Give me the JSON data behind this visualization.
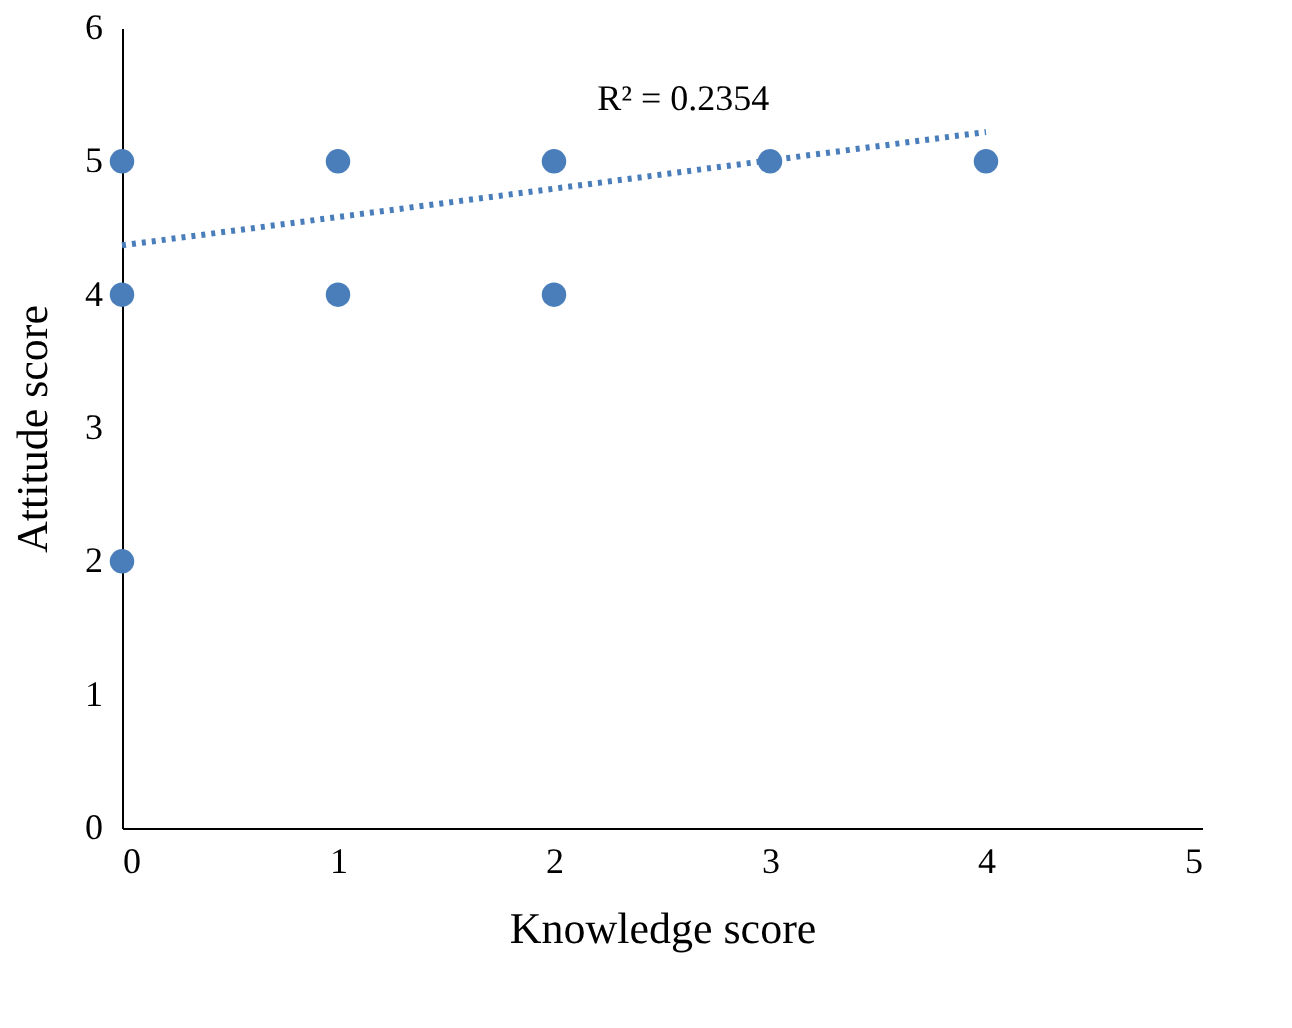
{
  "chart_data": {
    "type": "scatter",
    "xlabel": "Knowledge score",
    "ylabel": "Attitude score",
    "series": [
      {
        "color": "#4a7ebb",
        "marker": "circle",
        "x": [
          0,
          0,
          0,
          1,
          1,
          2,
          2,
          3,
          4
        ],
        "values": [
          5,
          4,
          2,
          5,
          4,
          5,
          4,
          5,
          5
        ]
      },
      {
        "type": "line",
        "color": "#4a7ebb",
        "line_style": "dotted",
        "marker": "none",
        "x": [
          0,
          4
        ],
        "values": [
          4.37,
          5.22
        ]
      }
    ],
    "annotations": [
      "R² = 0.2354"
    ],
    "xlim": [
      0,
      5
    ],
    "xticks": [
      0,
      1,
      2,
      3,
      4,
      5
    ],
    "ylim": [
      0,
      6
    ],
    "yticks": [
      0,
      1,
      2,
      3,
      4,
      5,
      6
    ],
    "grid": false
  }
}
